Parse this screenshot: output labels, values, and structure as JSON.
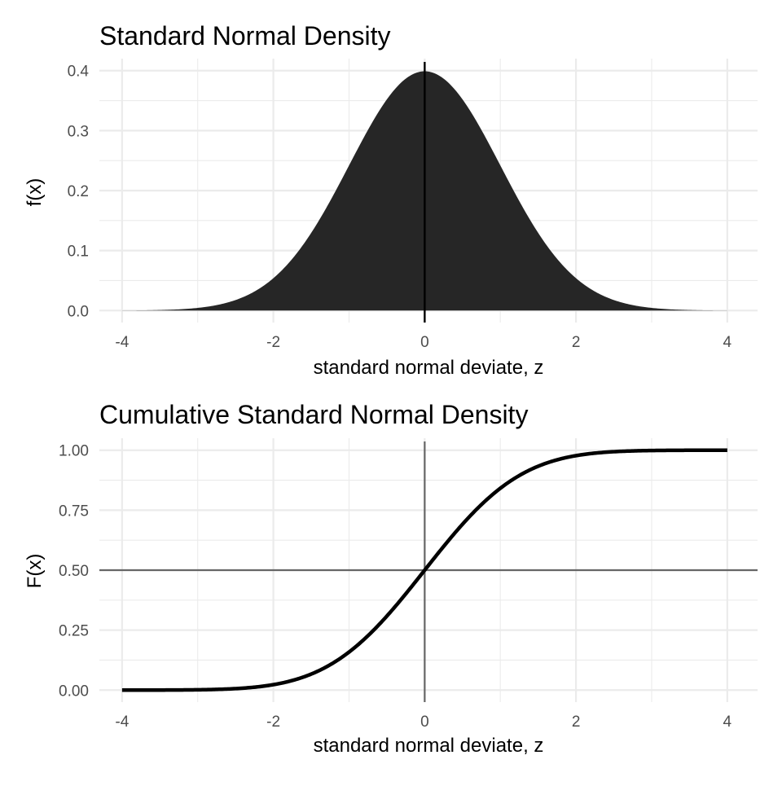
{
  "colors": {
    "background": "#ffffff",
    "grid": "#ebebeb",
    "density_fill": "#262626",
    "curve": "#000000",
    "reference_line": "#666666",
    "tick_text": "#4d4d4d"
  },
  "chart_data": [
    {
      "type": "area",
      "title": "Standard Normal Density",
      "xlabel": "standard normal deviate, z",
      "ylabel": "f(x)",
      "xlim": [
        -4.3,
        4.4
      ],
      "ylim": [
        -0.02,
        0.42
      ],
      "x_ticks": [
        -4,
        -2,
        0,
        2,
        4
      ],
      "x_tick_labels": [
        "-4",
        "-2",
        "0",
        "2",
        "4"
      ],
      "y_ticks": [
        0,
        0.1,
        0.2,
        0.3,
        0.4
      ],
      "y_tick_labels": [
        "0.0",
        "0.1",
        "0.2",
        "0.3",
        "0.4"
      ],
      "x_minor": [
        -3,
        -1,
        1,
        3
      ],
      "y_minor": [
        0.05,
        0.15,
        0.25,
        0.35
      ],
      "grid": true,
      "function": "normal_pdf",
      "x": [
        -4,
        -3.5,
        -3,
        -2.5,
        -2,
        -1.5,
        -1,
        -0.5,
        0,
        0.5,
        1,
        1.5,
        2,
        2.5,
        3,
        3.5,
        4
      ],
      "y": [
        0.0001,
        0.0009,
        0.0044,
        0.0175,
        0.054,
        0.1295,
        0.242,
        0.3521,
        0.3989,
        0.3521,
        0.242,
        0.1295,
        0.054,
        0.0175,
        0.0044,
        0.0009,
        0.0001
      ],
      "vline": 0
    },
    {
      "type": "line",
      "title": "Cumulative Standard Normal Density",
      "xlabel": "standard normal deviate, z",
      "ylabel": "F(x)",
      "xlim": [
        -4.3,
        4.4
      ],
      "ylim": [
        -0.05,
        1.05
      ],
      "x_ticks": [
        -4,
        -2,
        0,
        2,
        4
      ],
      "x_tick_labels": [
        "-4",
        "-2",
        "0",
        "2",
        "4"
      ],
      "y_ticks": [
        0,
        0.25,
        0.5,
        0.75,
        1
      ],
      "y_tick_labels": [
        "0.00",
        "0.25",
        "0.50",
        "0.75",
        "1.00"
      ],
      "x_minor": [
        -3,
        -1,
        1,
        3
      ],
      "y_minor": [
        0.125,
        0.375,
        0.625,
        0.875
      ],
      "grid": true,
      "function": "normal_cdf",
      "x": [
        -4,
        -3.5,
        -3,
        -2.5,
        -2,
        -1.5,
        -1,
        -0.5,
        0,
        0.5,
        1,
        1.5,
        2,
        2.5,
        3,
        3.5,
        4
      ],
      "y": [
        0,
        0.0002,
        0.0013,
        0.0062,
        0.0228,
        0.0668,
        0.1587,
        0.3085,
        0.5,
        0.6915,
        0.8413,
        0.9332,
        0.9772,
        0.9938,
        0.9987,
        0.9998,
        1
      ],
      "vline": 0,
      "hline": 0.5
    }
  ]
}
